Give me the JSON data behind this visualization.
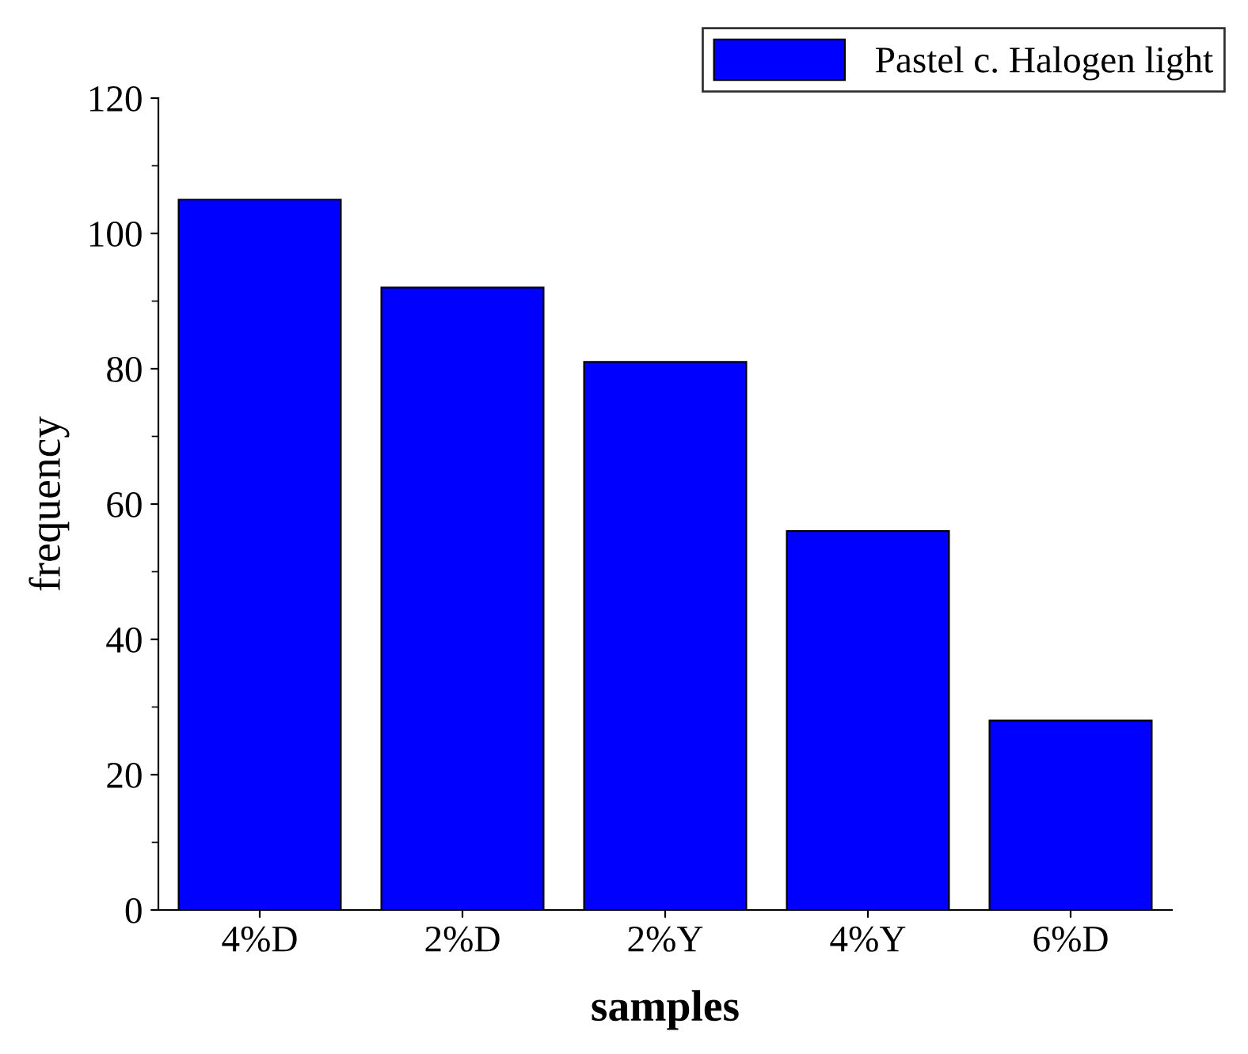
{
  "chart_data": {
    "type": "bar",
    "xlabel": "samples",
    "ylabel": "frequency",
    "categories": [
      "4%D",
      "2%D",
      "2%Y",
      "4%Y",
      "6%D"
    ],
    "series": [
      {
        "name": "Pastel c. Halogen light",
        "color": "#0000ff",
        "values": [
          105,
          92,
          81,
          56,
          28
        ]
      }
    ],
    "ylim": [
      0,
      120
    ],
    "yticks": [
      0,
      20,
      40,
      60,
      80,
      100,
      120
    ],
    "grid": false,
    "legend": "top right"
  }
}
